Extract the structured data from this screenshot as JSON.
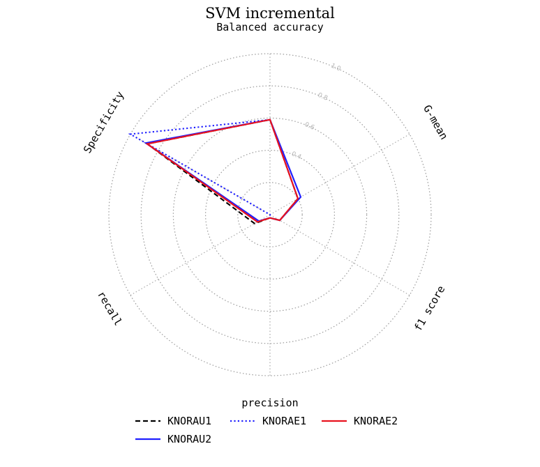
{
  "colors": {
    "KNORAU1": "#000000",
    "KNORAU2": "#1f1fff",
    "KNORAE1": "#1f1fff",
    "KNORAE2": "#e8121e"
  },
  "chart_data": {
    "type": "radar",
    "title": "SVM incremental",
    "subtitle": "Balanced accuracy",
    "axes": [
      "Balanced accuracy",
      "G-mean",
      "f1 score",
      "precision",
      "recall",
      "Specificity"
    ],
    "rlim": [
      0,
      1
    ],
    "radial_ticks": [
      "0.4",
      "0.6",
      "0.8",
      "1.0"
    ],
    "grid": true,
    "legend_placement": "bottom",
    "series": [
      {
        "name": "KNORAU1",
        "style": "dashed",
        "values": [
          0.59,
          0.2,
          0.07,
          0.02,
          0.11,
          0.88
        ]
      },
      {
        "name": "KNORAU2",
        "style": "solid",
        "values": [
          0.59,
          0.22,
          0.07,
          0.02,
          0.08,
          0.89
        ]
      },
      {
        "name": "KNORAE1",
        "style": "dotted",
        "values": [
          0.59,
          0.2,
          0.07,
          0.02,
          0.0,
          1.0
        ]
      },
      {
        "name": "KNORAE2",
        "style": "solid",
        "values": [
          0.59,
          0.2,
          0.07,
          0.02,
          0.09,
          0.88
        ]
      }
    ]
  }
}
